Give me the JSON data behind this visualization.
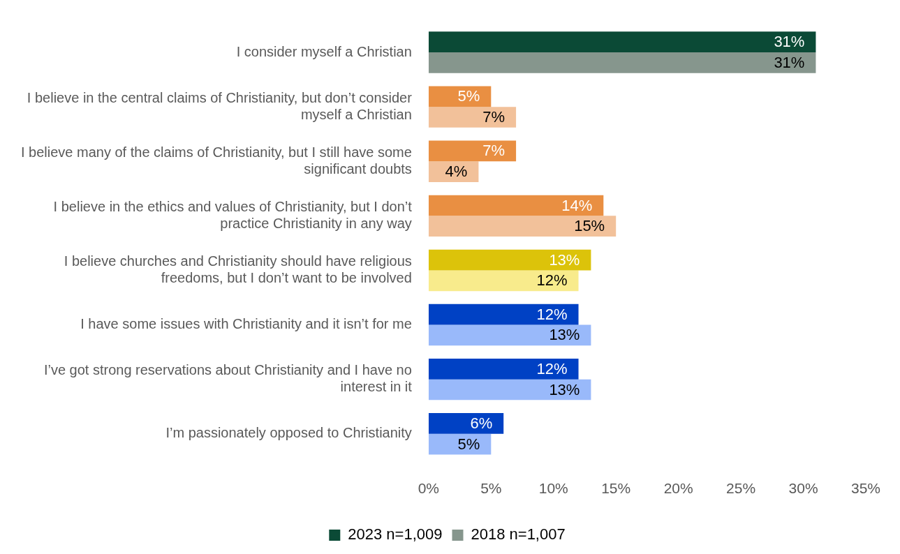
{
  "chart_data": {
    "type": "bar",
    "orientation": "horizontal",
    "categories": [
      "I consider myself a Christian",
      "I believe in the central claims of Christianity, but don’t consider myself a Christian",
      "I believe many of the claims of Christianity, but I still have some significant doubts",
      "I believe in the ethics and values of Christianity, but I don’t practice Christianity in any way",
      "I believe churches and Christianity should have religious freedoms, but I don’t want to be involved",
      "I have some issues with Christianity and it isn’t for me",
      "I’ve got strong reservations about Christianity and I have no interest in it",
      "I’m passionately opposed to Christianity"
    ],
    "series": [
      {
        "name": "2023 n=1,009",
        "color": "#0b4a36",
        "colors": [
          "#0b4a36",
          "#e98f42",
          "#e98f42",
          "#e98f42",
          "#dcc30a",
          "#0041c4",
          "#0041c4",
          "#0041c4"
        ],
        "values": [
          31,
          5,
          7,
          14,
          13,
          12,
          12,
          6
        ],
        "value_labels": [
          "31%",
          "5%",
          "7%",
          "14%",
          "13%",
          "12%",
          "12%",
          "6%"
        ]
      },
      {
        "name": "2018 n=1,007",
        "color": "#86968d",
        "colors": [
          "#86968d",
          "#f2c19a",
          "#f2c19a",
          "#f2c19a",
          "#f8eb8c",
          "#99b9fa",
          "#99b9fa",
          "#99b9fa"
        ],
        "values": [
          31,
          7,
          4,
          15,
          12,
          13,
          13,
          5
        ],
        "value_labels": [
          "31%",
          "7%",
          "4%",
          "15%",
          "12%",
          "13%",
          "13%",
          "5%"
        ]
      }
    ],
    "xlim": [
      0,
      35
    ],
    "xticks": [
      {
        "value": 0,
        "label": "0%"
      },
      {
        "value": 5,
        "label": "5%"
      },
      {
        "value": 10,
        "label": "10%"
      },
      {
        "value": 15,
        "label": "15%"
      },
      {
        "value": 20,
        "label": "20%"
      },
      {
        "value": 25,
        "label": "25%"
      },
      {
        "value": 30,
        "label": "30%"
      },
      {
        "value": 35,
        "label": "35%"
      }
    ],
    "grid": false,
    "legend": "bottom"
  }
}
